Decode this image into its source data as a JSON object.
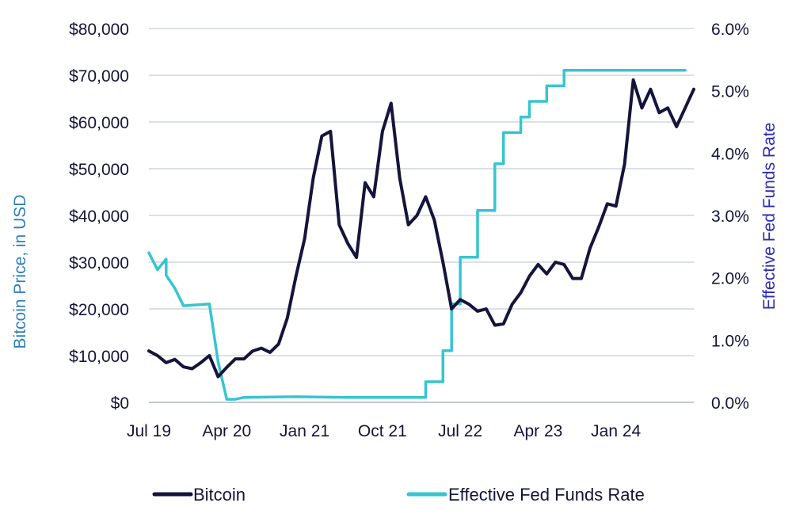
{
  "chart_data": {
    "type": "line",
    "title": "",
    "xlabel": "",
    "ylabel_left": "Bitcoin Price, in USD",
    "ylabel_right": "Effective Fed Funds Rate",
    "x_tick_labels": [
      "Jul 19",
      "Apr 20",
      "Jan 21",
      "Oct 21",
      "Jul 22",
      "Apr 23",
      "Jan 24"
    ],
    "y_left_ticks": [
      "$0",
      "$10,000",
      "$20,000",
      "$30,000",
      "$40,000",
      "$50,000",
      "$60,000",
      "$70,000",
      "$80,000"
    ],
    "y_right_ticks": [
      "0.0%",
      "1.0%",
      "2.0%",
      "3.0%",
      "4.0%",
      "5.0%",
      "6.0%"
    ],
    "ylim_left": [
      0,
      80000
    ],
    "ylim_right": [
      0,
      6.0
    ],
    "x_range": [
      "2019-07",
      "2024-10"
    ],
    "grid": true,
    "legend_position": "bottom",
    "series": [
      {
        "name": "Bitcoin",
        "axis": "left",
        "color": "#14143c",
        "points": [
          [
            "2019-07",
            11000
          ],
          [
            "2019-08",
            10000
          ],
          [
            "2019-09",
            8500
          ],
          [
            "2019-10",
            9200
          ],
          [
            "2019-11",
            7600
          ],
          [
            "2019-12",
            7200
          ],
          [
            "2020-01",
            8500
          ],
          [
            "2020-02",
            10000
          ],
          [
            "2020-03",
            5500
          ],
          [
            "2020-04",
            7500
          ],
          [
            "2020-05",
            9300
          ],
          [
            "2020-06",
            9300
          ],
          [
            "2020-07",
            11000
          ],
          [
            "2020-08",
            11600
          ],
          [
            "2020-09",
            10700
          ],
          [
            "2020-10",
            12500
          ],
          [
            "2020-11",
            18000
          ],
          [
            "2020-12",
            27000
          ],
          [
            "2021-01",
            35000
          ],
          [
            "2021-02",
            48000
          ],
          [
            "2021-03",
            57000
          ],
          [
            "2021-04",
            58000
          ],
          [
            "2021-05",
            38000
          ],
          [
            "2021-06",
            34000
          ],
          [
            "2021-07",
            31000
          ],
          [
            "2021-08",
            47000
          ],
          [
            "2021-09",
            44000
          ],
          [
            "2021-10",
            58000
          ],
          [
            "2021-11",
            64000
          ],
          [
            "2021-12",
            48000
          ],
          [
            "2022-01",
            38000
          ],
          [
            "2022-02",
            40000
          ],
          [
            "2022-03",
            44000
          ],
          [
            "2022-04",
            39000
          ],
          [
            "2022-05",
            30000
          ],
          [
            "2022-06",
            20000
          ],
          [
            "2022-07",
            22000
          ],
          [
            "2022-08",
            21000
          ],
          [
            "2022-09",
            19500
          ],
          [
            "2022-10",
            20000
          ],
          [
            "2022-11",
            16500
          ],
          [
            "2022-12",
            16800
          ],
          [
            "2023-01",
            21000
          ],
          [
            "2023-02",
            23500
          ],
          [
            "2023-03",
            27000
          ],
          [
            "2023-04",
            29500
          ],
          [
            "2023-05",
            27500
          ],
          [
            "2023-06",
            30000
          ],
          [
            "2023-07",
            29500
          ],
          [
            "2023-08",
            26500
          ],
          [
            "2023-09",
            26500
          ],
          [
            "2023-10",
            33000
          ],
          [
            "2023-11",
            37500
          ],
          [
            "2023-12",
            42500
          ],
          [
            "2024-01",
            42000
          ],
          [
            "2024-02",
            51000
          ],
          [
            "2024-03",
            69000
          ],
          [
            "2024-04",
            63000
          ],
          [
            "2024-05",
            67000
          ],
          [
            "2024-06",
            62000
          ],
          [
            "2024-07",
            63000
          ],
          [
            "2024-08",
            59000
          ],
          [
            "2024-09",
            63000
          ],
          [
            "2024-10",
            67000
          ]
        ]
      },
      {
        "name": "Effective Fed Funds Rate",
        "axis": "right",
        "color": "#36c5d0",
        "points": [
          [
            "2019-07",
            2.4
          ],
          [
            "2019-08",
            2.13
          ],
          [
            "2019-09",
            2.3
          ],
          [
            "2019-09",
            2.04
          ],
          [
            "2019-10",
            1.83
          ],
          [
            "2019-11",
            1.55
          ],
          [
            "2020-02",
            1.58
          ],
          [
            "2020-03",
            0.65
          ],
          [
            "2020-04",
            0.05
          ],
          [
            "2020-05",
            0.05
          ],
          [
            "2020-06",
            0.08
          ],
          [
            "2020-12",
            0.09
          ],
          [
            "2021-06",
            0.08
          ],
          [
            "2021-12",
            0.08
          ],
          [
            "2022-03",
            0.08
          ],
          [
            "2022-03",
            0.33
          ],
          [
            "2022-05",
            0.33
          ],
          [
            "2022-05",
            0.83
          ],
          [
            "2022-06",
            0.83
          ],
          [
            "2022-06",
            1.58
          ],
          [
            "2022-07",
            1.58
          ],
          [
            "2022-07",
            2.33
          ],
          [
            "2022-09",
            2.33
          ],
          [
            "2022-09",
            3.08
          ],
          [
            "2022-11",
            3.08
          ],
          [
            "2022-11",
            3.83
          ],
          [
            "2022-12",
            3.83
          ],
          [
            "2022-12",
            4.33
          ],
          [
            "2023-02",
            4.33
          ],
          [
            "2023-02",
            4.58
          ],
          [
            "2023-03",
            4.58
          ],
          [
            "2023-03",
            4.83
          ],
          [
            "2023-05",
            4.83
          ],
          [
            "2023-05",
            5.08
          ],
          [
            "2023-07",
            5.08
          ],
          [
            "2023-07",
            5.33
          ],
          [
            "2024-09",
            5.33
          ]
        ]
      }
    ]
  }
}
